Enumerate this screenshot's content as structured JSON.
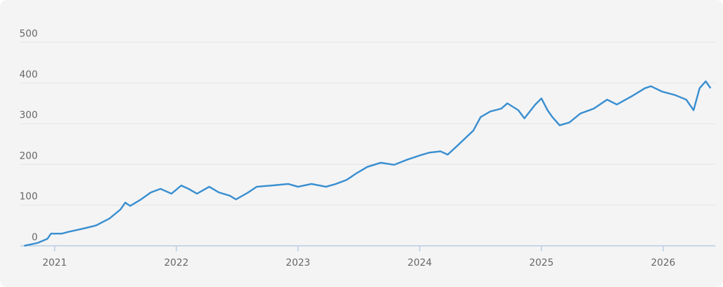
{
  "chart_data": {
    "type": "line",
    "x": [
      2020.75,
      2020.86,
      2020.94,
      2020.97,
      2021.06,
      2021.11,
      2021.23,
      2021.34,
      2021.45,
      2021.54,
      2021.58,
      2021.62,
      2021.71,
      2021.79,
      2021.87,
      2021.96,
      2022.04,
      2022.1,
      2022.17,
      2022.27,
      2022.35,
      2022.44,
      2022.49,
      2022.59,
      2022.66,
      2022.78,
      2022.92,
      2023.0,
      2023.11,
      2023.23,
      2023.31,
      2023.4,
      2023.48,
      2023.57,
      2023.68,
      2023.79,
      2023.9,
      2024.0,
      2024.08,
      2024.17,
      2024.23,
      2024.31,
      2024.38,
      2024.44,
      2024.5,
      2024.58,
      2024.67,
      2024.72,
      2024.81,
      2024.86,
      2024.95,
      2025.0,
      2025.05,
      2025.09,
      2025.15,
      2025.23,
      2025.32,
      2025.43,
      2025.54,
      2025.62,
      2025.74,
      2025.85,
      2025.9,
      2025.99,
      2026.1,
      2026.19,
      2026.25,
      2026.3,
      2026.35,
      2026.39
    ],
    "values": [
      0,
      7,
      17,
      30,
      30,
      34,
      42,
      50,
      67,
      89,
      106,
      98,
      114,
      131,
      140,
      128,
      148,
      140,
      128,
      145,
      131,
      123,
      114,
      131,
      145,
      148,
      152,
      145,
      152,
      145,
      152,
      162,
      178,
      194,
      204,
      199,
      212,
      222,
      229,
      232,
      224,
      246,
      266,
      283,
      316,
      330,
      337,
      350,
      333,
      313,
      347,
      362,
      333,
      316,
      296,
      303,
      325,
      337,
      359,
      347,
      367,
      387,
      392,
      379,
      370,
      359,
      333,
      387,
      404,
      387
    ],
    "color": "#3a8fd0",
    "xlim": [
      2020.72,
      2026.43
    ],
    "xticks": [
      2021,
      2022,
      2023,
      2024,
      2025,
      2026
    ],
    "ylim": [
      0,
      570
    ],
    "yticks": [
      0,
      100,
      200,
      300,
      400,
      500
    ],
    "grid": true
  }
}
